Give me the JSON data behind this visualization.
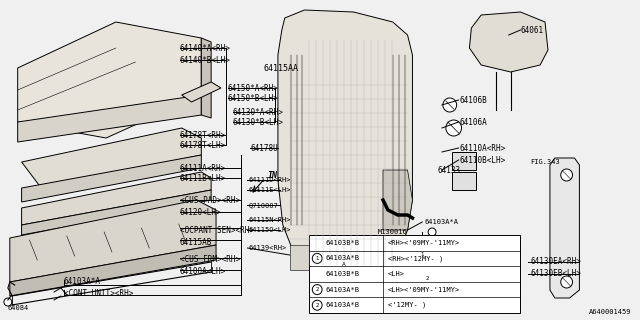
{
  "title": "",
  "background_color": "#f0f0f0",
  "diagram_id": "A640001459",
  "fig_ref": "FIG.343",
  "table_rows": [
    [
      "",
      "64103B*B",
      "<RH><'09MY-'11MY>"
    ],
    [
      "1",
      "64103A*B",
      "<RH><'12MY- )"
    ],
    [
      "",
      "64103B*B",
      "<LH>"
    ],
    [
      "2",
      "64103A*B",
      "<LH><'09MY-'11MY>"
    ],
    [
      "2",
      "64103A*B",
      "<'12MY- )"
    ]
  ],
  "line_color": "#000000",
  "label_fontsize": 5.5
}
